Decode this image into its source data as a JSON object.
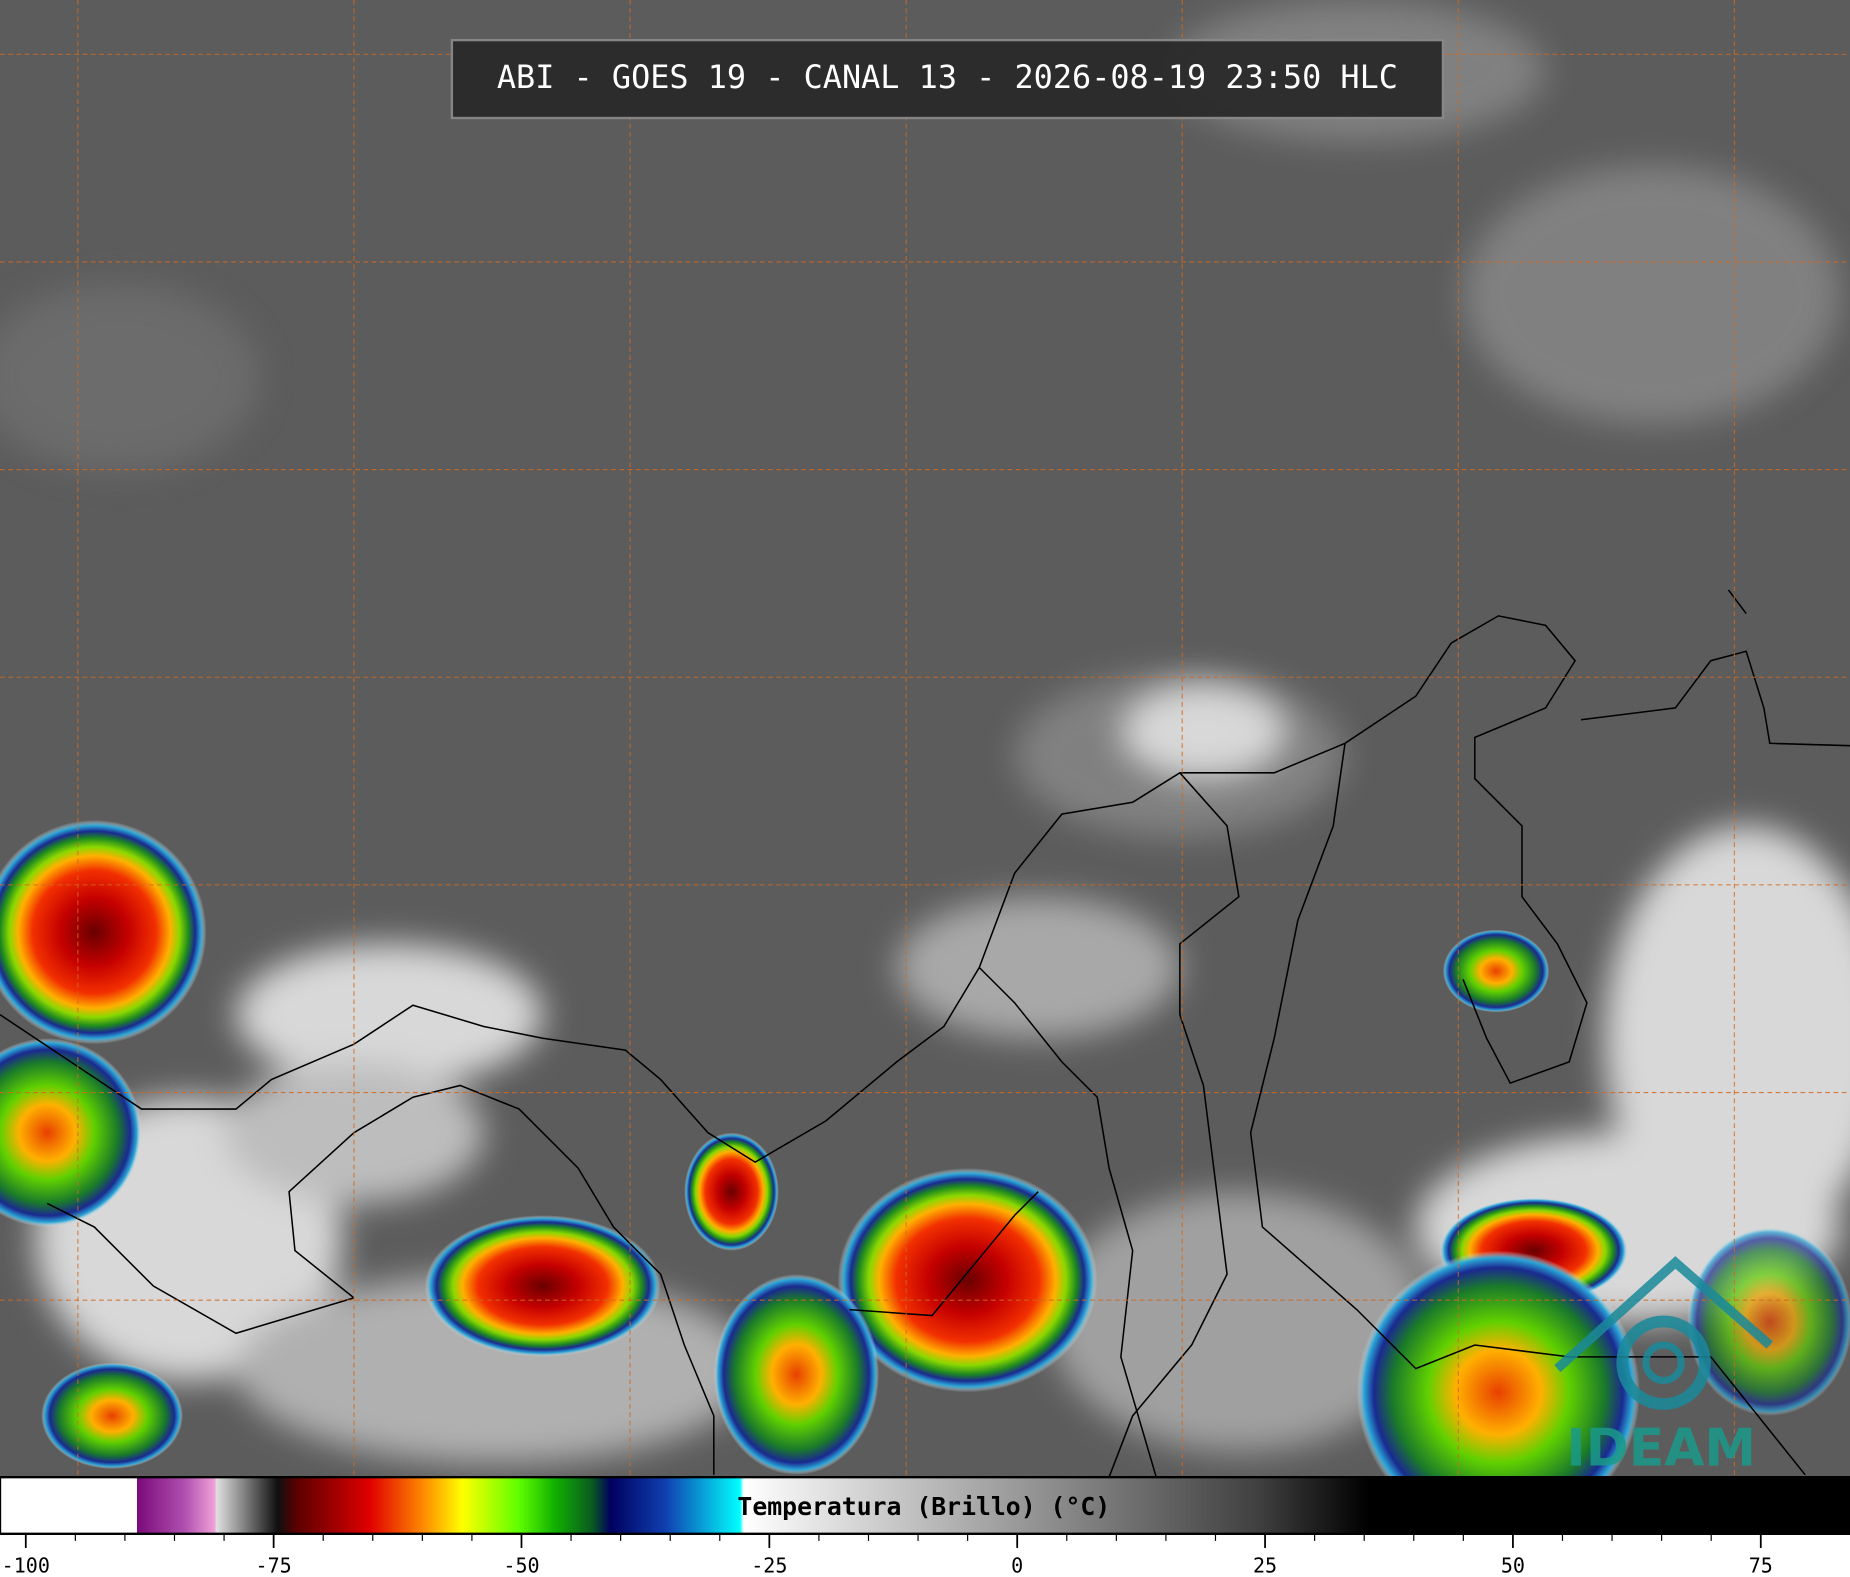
{
  "header": {
    "title": "ABI - GOES 19 - CANAL 13 - 2026-08-19 23:50 HLC"
  },
  "colorbar": {
    "label": "Temperatura (Brillo) (°C)",
    "lim": [
      -102.6,
      84
    ],
    "ticks": [
      -100,
      -75,
      -50,
      -25,
      0,
      25,
      50,
      75
    ]
  },
  "logo": {
    "text": "IDEAM"
  }
}
